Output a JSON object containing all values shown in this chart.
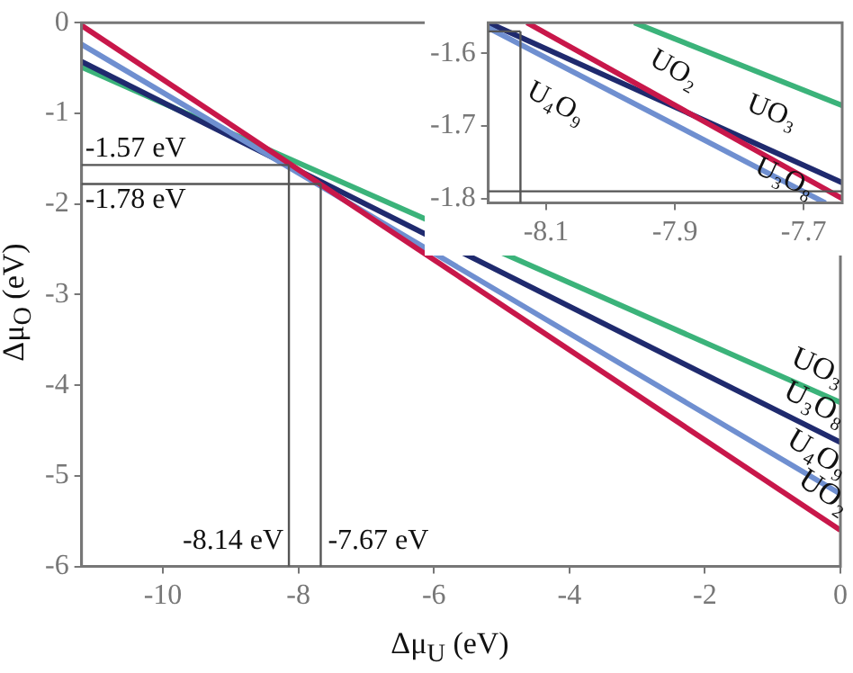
{
  "chart_data": [
    {
      "type": "line",
      "xlabel": "Δμ$_{U}$ (eV)",
      "ylabel": "Δμ$_{O}$ (eV)",
      "xlim": [
        -11.2,
        0
      ],
      "ylim": [
        -6,
        0
      ],
      "xticks": [
        -10,
        -8,
        -6,
        -4,
        -2,
        0
      ],
      "yticks": [
        -6,
        -5,
        -4,
        -3,
        -2,
        -1,
        0
      ],
      "legend": false,
      "marker": "none",
      "line_style": "solid",
      "series": [
        {
          "name": "UO₂",
          "color": "#c8174a",
          "x": [
            -11.2,
            0
          ],
          "values": [
            -0.03,
            -5.6
          ]
        },
        {
          "name": "U₄O₉",
          "color": "#6f8fd0",
          "x": [
            -11.2,
            0
          ],
          "values": [
            -0.24,
            -5.2
          ]
        },
        {
          "name": "U₃O₈",
          "color": "#1f2a6e",
          "x": [
            -11.2,
            0
          ],
          "values": [
            -0.43,
            -4.63
          ]
        },
        {
          "name": "UO₃",
          "color": "#3bb37a",
          "x": [
            -11.2,
            0
          ],
          "values": [
            -0.49,
            -4.19
          ]
        }
      ],
      "ref_lines": [
        {
          "axis": "y",
          "value": -1.57,
          "label": "-1.57 eV"
        },
        {
          "axis": "y",
          "value": -1.78,
          "label": "-1.78 eV"
        },
        {
          "axis": "x",
          "value": -8.14,
          "label": "-8.14 eV"
        },
        {
          "axis": "x",
          "value": -7.67,
          "label": "-7.67 eV"
        }
      ]
    },
    {
      "type": "line",
      "xlim": [
        -8.19,
        -7.64
      ],
      "ylim": [
        -1.806,
        -1.558
      ],
      "xticks": [
        -8.1,
        -7.9,
        -7.7
      ],
      "yticks": [
        -1.8,
        -1.7,
        -1.6
      ],
      "legend": false,
      "marker": "none",
      "line_style": "solid",
      "series": [
        {
          "name": "UO₂",
          "color": "#c8174a",
          "x": [
            -8.13,
            -7.64
          ],
          "values": [
            -1.558,
            -1.8
          ]
        },
        {
          "name": "U₄O₉",
          "color": "#6f8fd0",
          "x": [
            -8.19,
            -7.666
          ],
          "values": [
            -1.565,
            -1.806
          ]
        },
        {
          "name": "U₃O₈",
          "color": "#1f2a6e",
          "x": [
            -8.19,
            -7.64
          ],
          "values": [
            -1.558,
            -1.778
          ]
        },
        {
          "name": "UO₃",
          "color": "#3bb37a",
          "x": [
            -7.963,
            -7.64
          ],
          "values": [
            -1.558,
            -1.672
          ]
        }
      ],
      "ref_lines": [
        {
          "axis": "y",
          "value": -1.57
        },
        {
          "axis": "y",
          "value": -1.79
        },
        {
          "axis": "x",
          "value": -8.14
        }
      ]
    }
  ]
}
